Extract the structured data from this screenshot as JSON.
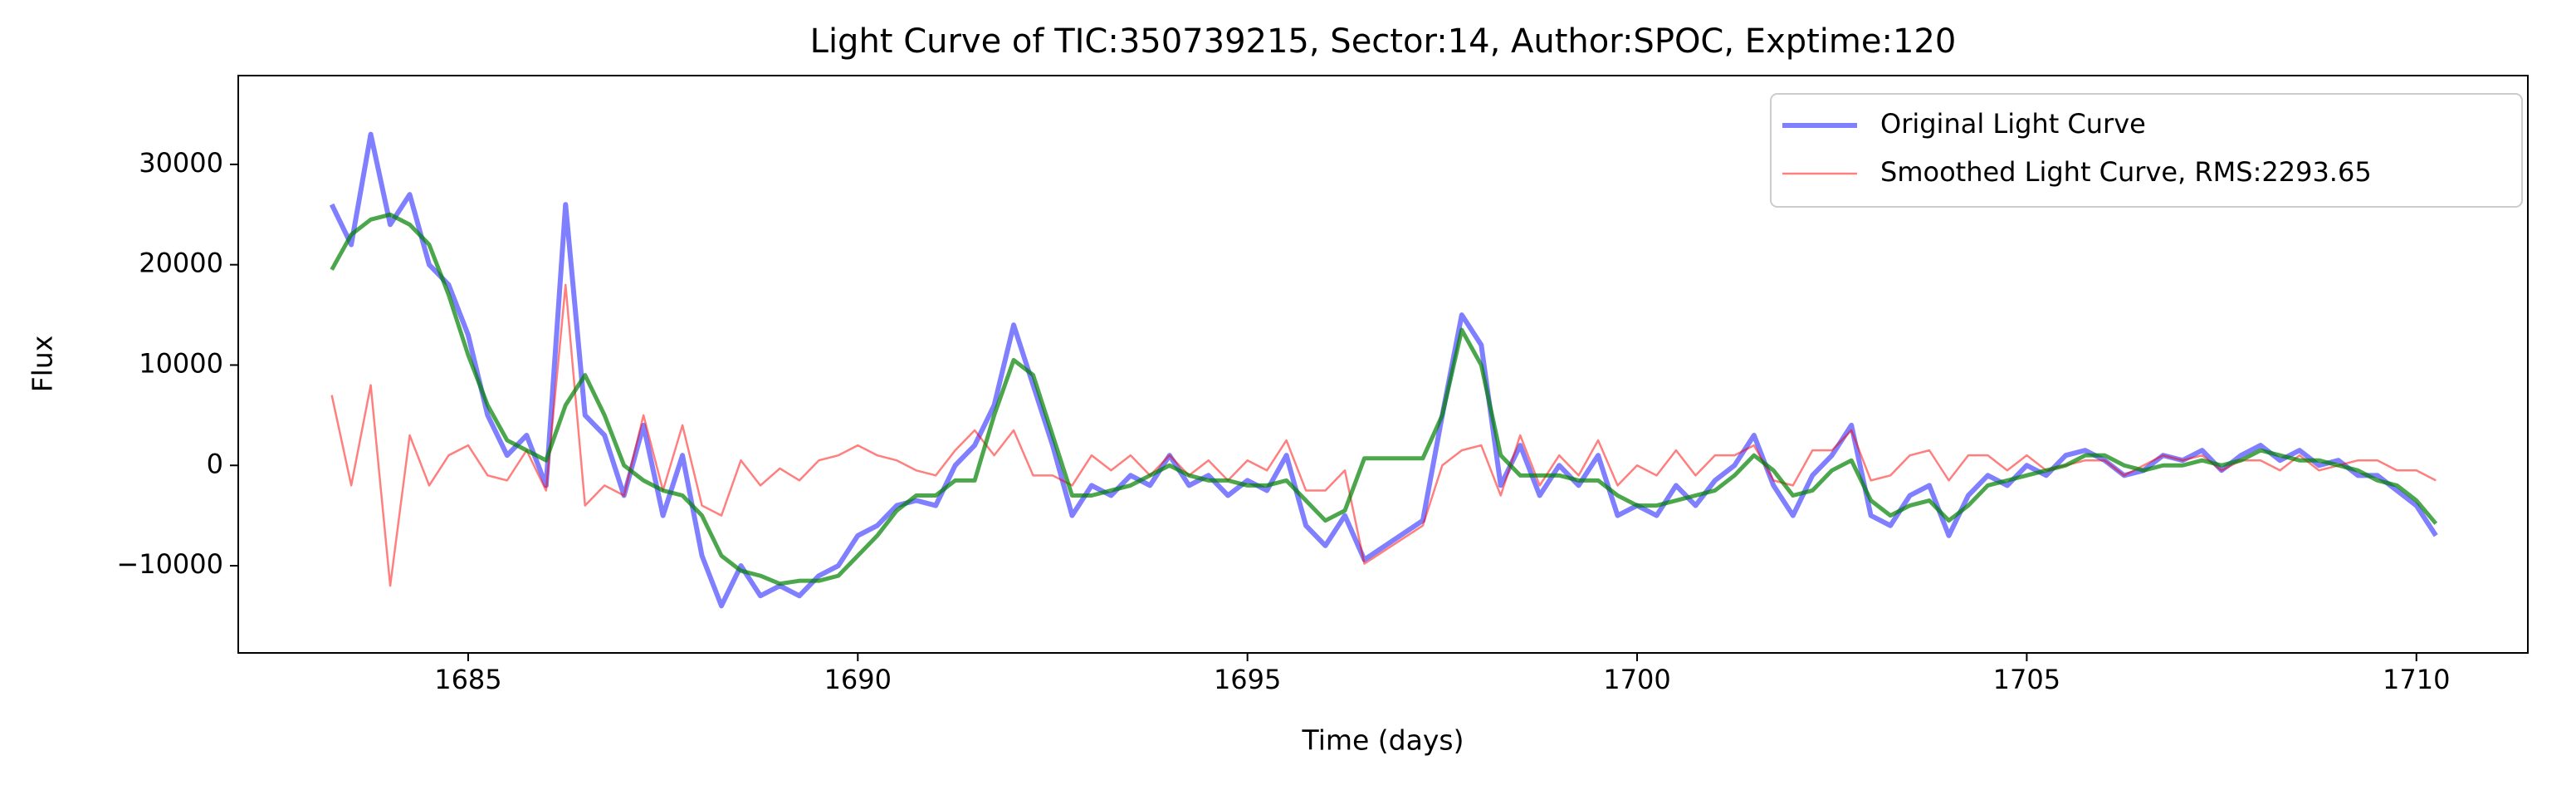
{
  "chart_data": {
    "type": "line",
    "title": "Light Curve of TIC:350739215, Sector:14, Author:SPOC, Exptime:120",
    "x_label": "Time (days)",
    "y_label": "Flux",
    "xlim": [
      1682.05,
      1711.43
    ],
    "ylim": [
      -18690,
      38850
    ],
    "xticks": [
      1685,
      1690,
      1695,
      1700,
      1705,
      1710
    ],
    "yticks": [
      {
        "value": -10000,
        "label": "−10000"
      },
      0,
      10000,
      20000,
      30000
    ],
    "grid": false,
    "legend": "upper right",
    "x": [
      1683.25,
      1683.5,
      1683.75,
      1684,
      1684.25,
      1684.5,
      1684.75,
      1685,
      1685.25,
      1685.5,
      1685.75,
      1686,
      1686.25,
      1686.5,
      1686.75,
      1687,
      1687.25,
      1687.5,
      1687.75,
      1688,
      1688.25,
      1688.5,
      1688.75,
      1689,
      1689.25,
      1689.5,
      1689.75,
      1690,
      1690.25,
      1690.5,
      1690.75,
      1691,
      1691.25,
      1691.5,
      1691.75,
      1692,
      1692.25,
      1692.5,
      1692.75,
      1693,
      1693.25,
      1693.5,
      1693.75,
      1694,
      1694.25,
      1694.5,
      1694.75,
      1695,
      1695.25,
      1695.5,
      1695.75,
      1696,
      1696.25,
      1696.5,
      1697.25,
      1697.5,
      1697.75,
      1698,
      1698.25,
      1698.5,
      1698.75,
      1699,
      1699.25,
      1699.5,
      1699.75,
      1700,
      1700.25,
      1700.5,
      1700.75,
      1701,
      1701.25,
      1701.5,
      1701.75,
      1702,
      1702.25,
      1702.5,
      1702.75,
      1703,
      1703.25,
      1703.5,
      1703.75,
      1704,
      1704.25,
      1704.5,
      1704.75,
      1705,
      1705.25,
      1705.5,
      1705.75,
      1706,
      1706.25,
      1706.5,
      1706.75,
      1707,
      1707.25,
      1707.5,
      1707.75,
      1708,
      1708.25,
      1708.5,
      1708.75,
      1709,
      1709.25,
      1709.5,
      1709.75,
      1710,
      1710.25
    ],
    "series": [
      {
        "name": "Original Light Curve",
        "color": "#0000ff",
        "values": [
          26000,
          22000,
          33000,
          24000,
          27000,
          20000,
          18000,
          13000,
          5000,
          1000,
          3000,
          -2000,
          26000,
          5000,
          3000,
          -3000,
          4000,
          -5000,
          1000,
          -9000,
          -14000,
          -10000,
          -13000,
          -12000,
          -13000,
          -11000,
          -10000,
          -7000,
          -6000,
          -4000,
          -3500,
          -4000,
          0,
          2000,
          6000,
          14000,
          8000,
          2000,
          -5000,
          -2000,
          -3000,
          -1000,
          -2000,
          1000,
          -2000,
          -1000,
          -3000,
          -1500,
          -2500,
          1000,
          -6000,
          -8000,
          -5000,
          -9400,
          -5500,
          5000,
          15000,
          12000,
          -2000,
          2000,
          -3000,
          0,
          -2000,
          1000,
          -5000,
          -4000,
          -5000,
          -2000,
          -4000,
          -1500,
          0,
          3000,
          -2000,
          -5000,
          -1000,
          1000,
          4000,
          -5000,
          -6000,
          -3000,
          -2000,
          -7000,
          -3000,
          -1000,
          -2000,
          0,
          -1000,
          1000,
          1500,
          500,
          -1000,
          -500,
          1000,
          500,
          1500,
          -500,
          1000,
          2000,
          500,
          1500,
          0,
          500,
          -1000,
          -1000,
          -2500,
          -4000,
          -7000
        ]
      },
      {
        "name": "Smoothed Light Curve, RMS:2293.65",
        "color": "#ff0000",
        "values": [
          7000,
          -2000,
          8000,
          -12000,
          3000,
          -2000,
          1000,
          2000,
          -1000,
          -1500,
          1500,
          -2500,
          18000,
          -4000,
          -2000,
          -3000,
          5000,
          -2500,
          4000,
          -4000,
          -5000,
          500,
          -2000,
          -300,
          -1500,
          500,
          1000,
          2000,
          1000,
          500,
          -500,
          -1000,
          1500,
          3500,
          1000,
          3500,
          -1000,
          -1000,
          -2000,
          1000,
          -500,
          1000,
          -1000,
          1000,
          -1000,
          500,
          -1500,
          500,
          -500,
          2500,
          -2500,
          -2500,
          -500,
          -9800,
          -6000,
          0,
          1500,
          2000,
          -3000,
          3000,
          -2000,
          1000,
          -1000,
          2500,
          -2000,
          0,
          -1000,
          1500,
          -1000,
          1000,
          1000,
          2000,
          -1500,
          -2000,
          1500,
          1500,
          3500,
          -1500,
          -1000,
          1000,
          1500,
          -1500,
          1000,
          1000,
          -500,
          1000,
          -500,
          0,
          500,
          500,
          -1000,
          0,
          1000,
          500,
          1000,
          -500,
          500,
          500,
          -500,
          1000,
          -500,
          0,
          500,
          500,
          -500,
          -500,
          -1500
        ]
      },
      {
        "color": "#008000",
        "values": [
          19500,
          23000,
          24500,
          25000,
          24000,
          22000,
          17000,
          11000,
          6000,
          2500,
          1500,
          500,
          6000,
          9000,
          5000,
          0,
          -1500,
          -2500,
          -3000,
          -5000,
          -9000,
          -10500,
          -11000,
          -11800,
          -11500,
          -11500,
          -11000,
          -9000,
          -7000,
          -4500,
          -3000,
          -3000,
          -1500,
          -1500,
          5000,
          10500,
          9000,
          3000,
          -3000,
          -3000,
          -2500,
          -2000,
          -1000,
          0,
          -1000,
          -1500,
          -1500,
          -2000,
          -2000,
          -1500,
          -3500,
          -5500,
          -4500,
          700,
          700,
          5000,
          13500,
          10000,
          1000,
          -1000,
          -1000,
          -1000,
          -1500,
          -1500,
          -3000,
          -4000,
          -4000,
          -3500,
          -3000,
          -2500,
          -1000,
          1000,
          -500,
          -3000,
          -2500,
          -500,
          500,
          -3500,
          -5000,
          -4000,
          -3500,
          -5500,
          -4000,
          -2000,
          -1500,
          -1000,
          -500,
          0,
          1000,
          1000,
          0,
          -500,
          0,
          0,
          500,
          0,
          500,
          1500,
          1000,
          500,
          500,
          0,
          -500,
          -1500,
          -2000,
          -3500,
          -5800
        ]
      }
    ]
  }
}
